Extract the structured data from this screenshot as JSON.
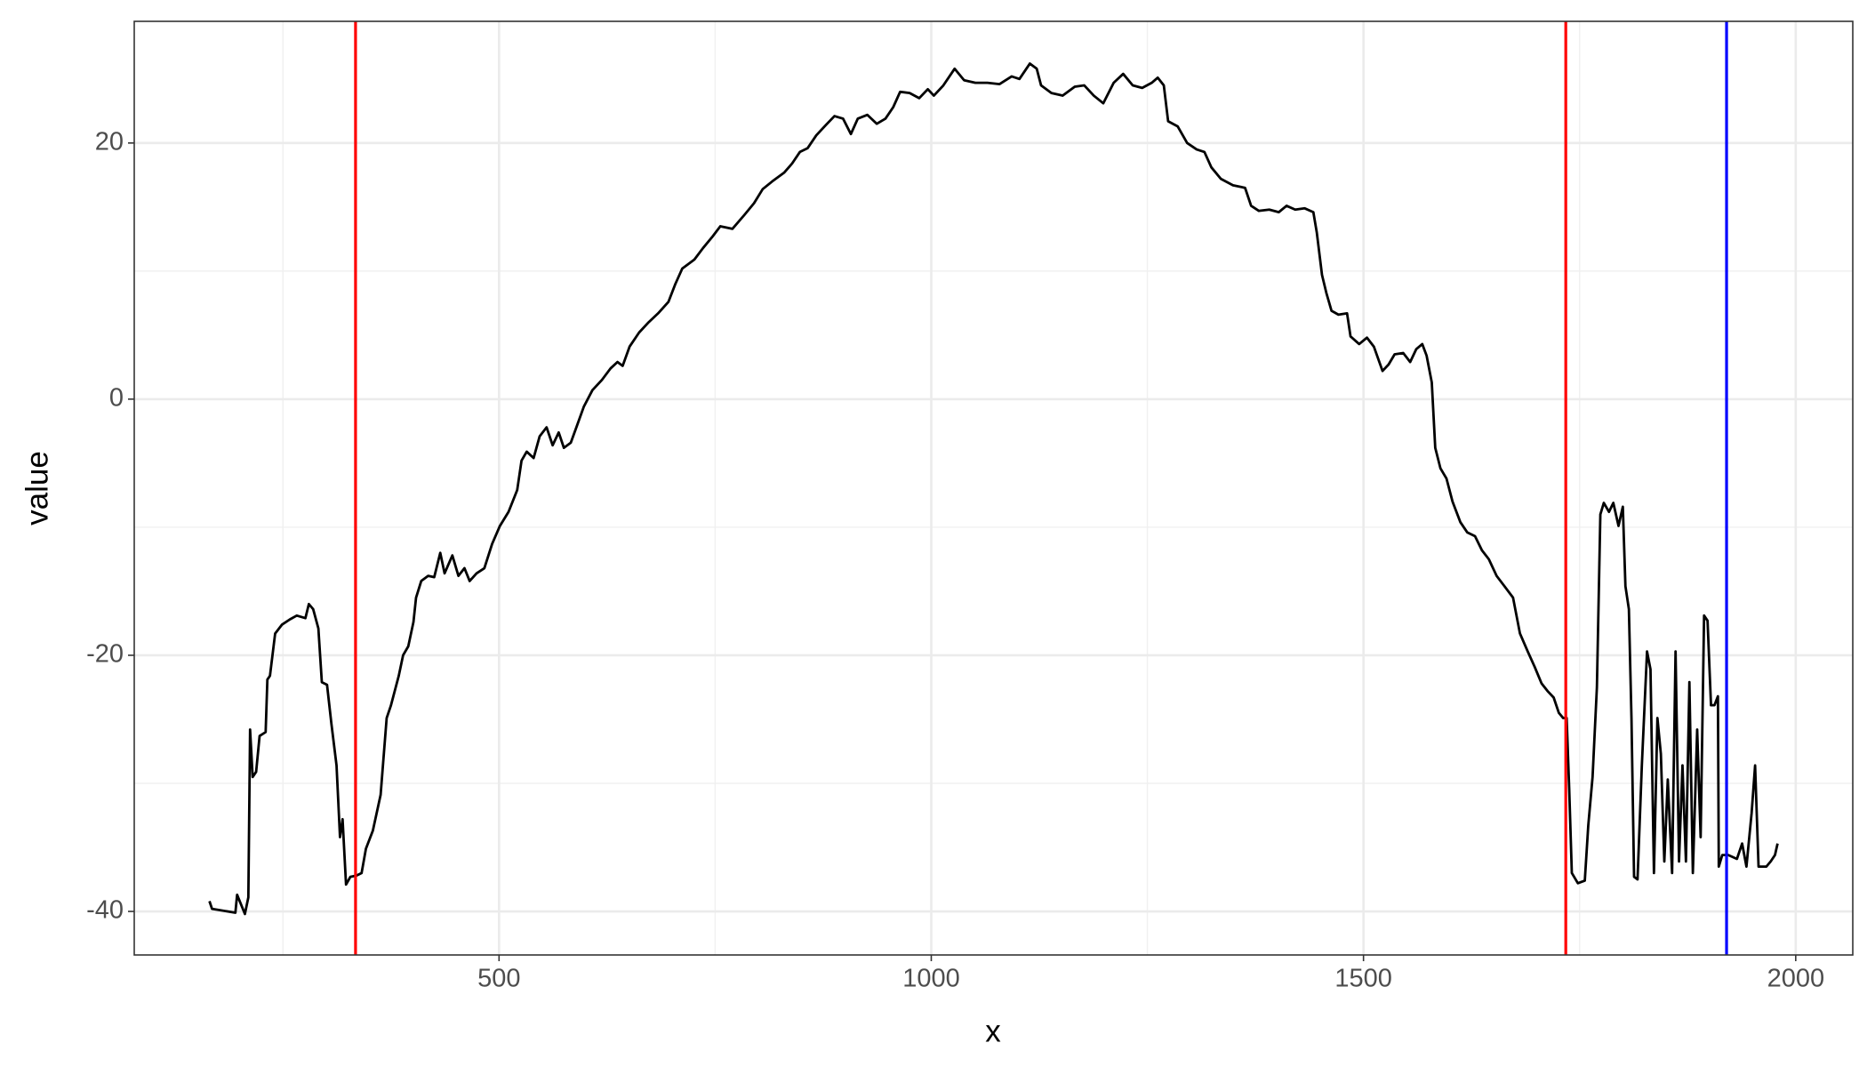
{
  "chart_data": {
    "type": "line",
    "x_label": "x",
    "y_label": "value",
    "xlim": [
      78,
      2066
    ],
    "ylim": [
      -43.4,
      29.5
    ],
    "xticks": [
      500,
      1000,
      1500,
      2000
    ],
    "yticks": [
      -40,
      -20,
      0,
      20
    ],
    "grid": true,
    "x": [
      165,
      168,
      195,
      197,
      206,
      210,
      212,
      215,
      219,
      223,
      230,
      232,
      235,
      241,
      249,
      258,
      266,
      276,
      280,
      285,
      291,
      295,
      301,
      306,
      312,
      316,
      319,
      323,
      328,
      335,
      341,
      346,
      354,
      363,
      370,
      375,
      384,
      389,
      395,
      401,
      404,
      410,
      418,
      425,
      432,
      437,
      446,
      453,
      460,
      466,
      474,
      483,
      492,
      501,
      511,
      521,
      526,
      532,
      540,
      547,
      555,
      562,
      569,
      575,
      583,
      590,
      598,
      608,
      619,
      629,
      637,
      643,
      651,
      662,
      673,
      684,
      696,
      704,
      712,
      726,
      736,
      747,
      756,
      770,
      784,
      795,
      805,
      816,
      830,
      839,
      848,
      857,
      867,
      878,
      888,
      898,
      907,
      915,
      926,
      937,
      947,
      956,
      964,
      975,
      986,
      996,
      1003,
      1014,
      1027,
      1038,
      1051,
      1065,
      1079,
      1093,
      1102,
      1114,
      1122,
      1127,
      1139,
      1152,
      1166,
      1177,
      1188,
      1199,
      1211,
      1222,
      1233,
      1244,
      1255,
      1262,
      1269,
      1274,
      1285,
      1296,
      1307,
      1316,
      1324,
      1335,
      1349,
      1363,
      1370,
      1379,
      1391,
      1402,
      1411,
      1421,
      1432,
      1442,
      1446,
      1452,
      1457,
      1463,
      1471,
      1481,
      1485,
      1495,
      1504,
      1512,
      1522,
      1529,
      1536,
      1546,
      1554,
      1561,
      1568,
      1573,
      1579,
      1583,
      1589,
      1596,
      1603,
      1612,
      1620,
      1629,
      1637,
      1645,
      1654,
      1663,
      1673,
      1681,
      1690,
      1698,
      1706,
      1713,
      1720,
      1726,
      1731,
      1735,
      1738,
      1741,
      1748,
      1756,
      1760,
      1765,
      1770,
      1774,
      1778,
      1784,
      1789,
      1795,
      1800,
      1803,
      1807,
      1810,
      1813,
      1817,
      1822,
      1828,
      1832,
      1836,
      1840,
      1844,
      1848,
      1852,
      1857,
      1861,
      1865,
      1869,
      1873,
      1877,
      1881,
      1886,
      1890,
      1894,
      1898,
      1902,
      1906,
      1910,
      1911,
      1915,
      1922,
      1932,
      1938,
      1943,
      1949,
      1953,
      1957,
      1966,
      1971,
      1976,
      1979
    ],
    "series": [
      {
        "color": "#000000",
        "values": [
          -39.2,
          -39.8,
          -40.1,
          -38.7,
          -40.2,
          -38.9,
          -25.8,
          -29.5,
          -29.1,
          -26.3,
          -26,
          -21.9,
          -21.6,
          -18.3,
          -17.6,
          -17.2,
          -16.9,
          -17.1,
          -16,
          -16.4,
          -17.9,
          -22.1,
          -22.3,
          -25.3,
          -28.6,
          -34.2,
          -32.8,
          -37.9,
          -37.3,
          -37.2,
          -37,
          -35.1,
          -33.7,
          -30.9,
          -24.9,
          -23.9,
          -21.6,
          -20,
          -19.3,
          -17.4,
          -15.5,
          -14.2,
          -13.8,
          -13.9,
          -12,
          -13.6,
          -12.2,
          -13.8,
          -13.2,
          -14.2,
          -13.6,
          -13.2,
          -11.3,
          -9.9,
          -8.8,
          -7.1,
          -4.8,
          -4.1,
          -4.6,
          -2.9,
          -2.2,
          -3.6,
          -2.6,
          -3.8,
          -3.4,
          -2.1,
          -0.6,
          0.7,
          1.5,
          2.4,
          2.9,
          2.6,
          4.1,
          5.2,
          6,
          6.7,
          7.6,
          9,
          10.2,
          10.9,
          11.8,
          12.7,
          13.5,
          13.3,
          14.4,
          15.3,
          16.4,
          17,
          17.7,
          18.4,
          19.3,
          19.6,
          20.6,
          21.4,
          22.1,
          21.9,
          20.7,
          21.9,
          22.2,
          21.5,
          21.9,
          22.8,
          24,
          23.9,
          23.5,
          24.2,
          23.7,
          24.5,
          25.8,
          24.9,
          24.7,
          24.7,
          24.6,
          25.2,
          25,
          26.2,
          25.8,
          24.5,
          23.9,
          23.7,
          24.4,
          24.5,
          23.7,
          23.1,
          24.7,
          25.4,
          24.5,
          24.3,
          24.7,
          25.1,
          24.5,
          21.7,
          21.3,
          20,
          19.5,
          19.3,
          18.1,
          17.2,
          16.7,
          16.5,
          15.1,
          14.7,
          14.8,
          14.6,
          15.1,
          14.8,
          14.9,
          14.6,
          13,
          9.7,
          8.3,
          6.9,
          6.6,
          6.7,
          4.9,
          4.3,
          4.8,
          4.1,
          2.2,
          2.7,
          3.5,
          3.6,
          2.9,
          3.9,
          4.3,
          3.4,
          1.3,
          -3.8,
          -5.4,
          -6.2,
          -8,
          -9.6,
          -10.4,
          -10.7,
          -11.8,
          -12.5,
          -13.8,
          -14.6,
          -15.5,
          -18.3,
          -19.7,
          -20.9,
          -22.2,
          -22.8,
          -23.3,
          -24.5,
          -24.9,
          -24.9,
          -30.5,
          -37,
          -37.8,
          -37.6,
          -33.3,
          -29.5,
          -22.5,
          -9,
          -8.1,
          -8.8,
          -8.1,
          -9.9,
          -8.4,
          -14.6,
          -16.4,
          -24.9,
          -37.3,
          -37.5,
          -28.6,
          -19.7,
          -21.1,
          -37,
          -24.9,
          -27.7,
          -36.1,
          -29.7,
          -37,
          -19.7,
          -36.1,
          -28.6,
          -36.1,
          -22.1,
          -37,
          -25.8,
          -34.2,
          -16.9,
          -17.3,
          -23.9,
          -23.9,
          -23.2,
          -36.5,
          -35.6,
          -35.6,
          -35.9,
          -34.7,
          -36.5,
          -32.3,
          -28.6,
          -36.5,
          -36.5,
          -36.1,
          -35.6,
          -34.7
        ]
      }
    ],
    "vlines": [
      {
        "x": 334,
        "color": "#ff0000"
      },
      {
        "x": 1734,
        "color": "#ff0000"
      },
      {
        "x": 1920,
        "color": "#0000ff"
      }
    ]
  }
}
